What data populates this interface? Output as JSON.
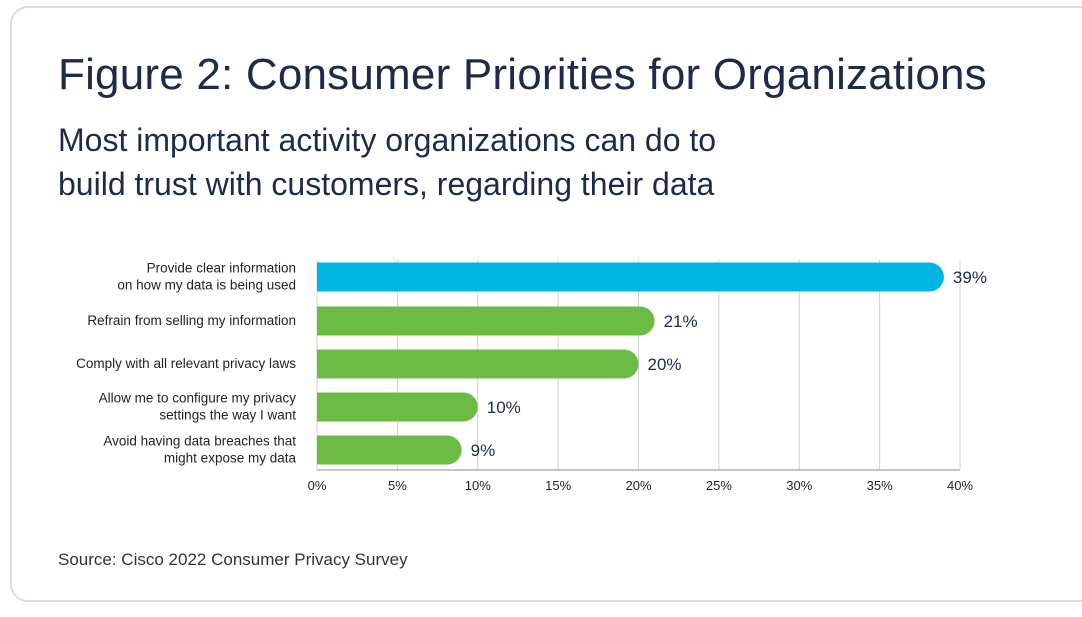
{
  "title": "Figure 2: Consumer Priorities for Organizations",
  "subtitle_lines": [
    "Most important activity organizations can do to",
    "build trust with customers, regarding their data"
  ],
  "source": "Source: Cisco 2022 Consumer Privacy Survey",
  "colors": {
    "highlight": "#00b5e2",
    "bar": "#6cbb45",
    "grid": "#d0d0d0",
    "text": "#1e2a4a"
  },
  "chart_data": {
    "type": "bar",
    "orientation": "horizontal",
    "categories": [
      [
        "Provide clear information",
        "on how my data is being used"
      ],
      [
        "Refrain from selling my information"
      ],
      [
        "Comply with all relevant privacy laws"
      ],
      [
        "Allow me to configure my privacy",
        "settings the way I want"
      ],
      [
        "Avoid having data breaches that",
        "might expose my data"
      ]
    ],
    "values": [
      39,
      21,
      20,
      10,
      9
    ],
    "value_labels": [
      "39%",
      "21%",
      "20%",
      "10%",
      "9%"
    ],
    "highlight_index": 0,
    "xlim": [
      0,
      40
    ],
    "xticks": [
      "0%",
      "5%",
      "10%",
      "15%",
      "20%",
      "25%",
      "30%",
      "35%",
      "40%"
    ],
    "grid": true,
    "legend": "none"
  }
}
